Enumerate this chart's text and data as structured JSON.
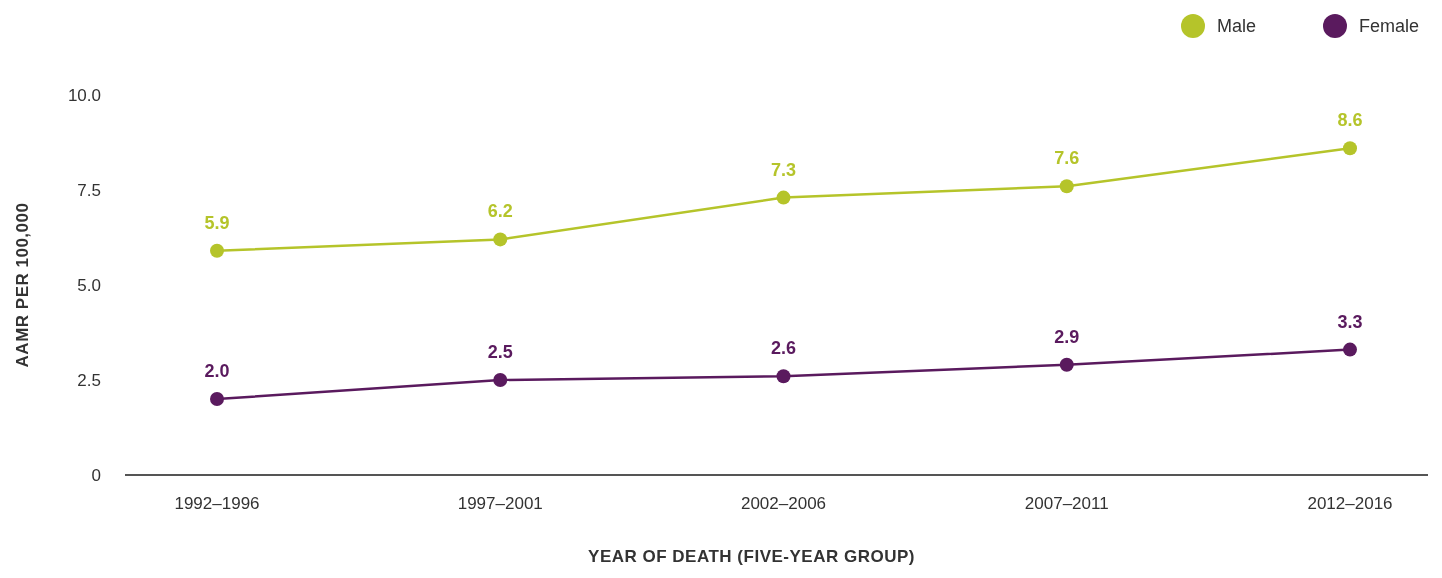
{
  "chart_data": {
    "type": "line",
    "xlabel": "YEAR OF DEATH (FIVE-YEAR GROUP)",
    "ylabel": "AAMR PER 100,000",
    "categories": [
      "1992–1996",
      "1997–2001",
      "2002–2006",
      "2007–2011",
      "2012–2016"
    ],
    "series": [
      {
        "name": "Male",
        "color": "#b5c42a",
        "values": [
          5.9,
          6.2,
          7.3,
          7.6,
          8.6
        ],
        "value_labels": [
          "5.9",
          "6.2",
          "7.3",
          "7.6",
          "8.6"
        ]
      },
      {
        "name": "Female",
        "color": "#5a1a5e",
        "values": [
          2.0,
          2.5,
          2.6,
          2.9,
          3.3
        ],
        "value_labels": [
          "2.0",
          "2.5",
          "2.6",
          "2.9",
          "3.3"
        ]
      }
    ],
    "ylim": [
      0,
      10
    ],
    "yticks": [
      0,
      {
        "value": 2.5,
        "label": "2.5"
      },
      {
        "value": 5,
        "label": "5.0"
      },
      {
        "value": 7.5,
        "label": "7.5"
      },
      {
        "value": 10,
        "label": "10.0"
      }
    ],
    "marker": "circle",
    "line_style": "solid",
    "legend": "top right",
    "grid": false
  }
}
